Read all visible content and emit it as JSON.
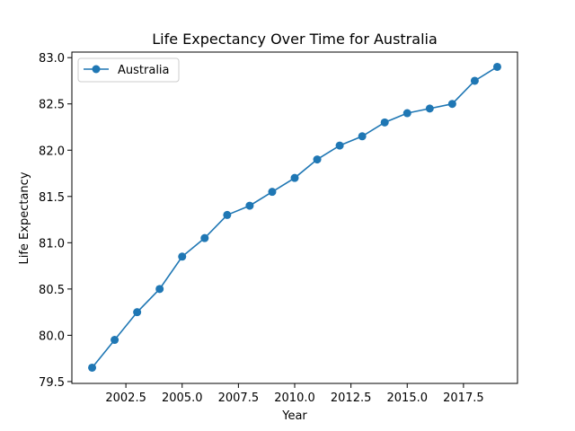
{
  "chart_data": {
    "type": "line",
    "title": "Life Expectancy Over Time for Australia",
    "xlabel": "Year",
    "ylabel": "Life Expectancy",
    "xlim": [
      2000.1,
      2019.9
    ],
    "ylim": [
      79.48,
      83.06
    ],
    "xticks": [
      2002.5,
      2005.0,
      2007.5,
      2010.0,
      2012.5,
      2015.0,
      2017.5
    ],
    "xtick_labels": [
      "2002.5",
      "2005.0",
      "2007.5",
      "2010.0",
      "2012.5",
      "2015.0",
      "2017.5"
    ],
    "yticks": [
      79.5,
      80.0,
      80.5,
      81.0,
      81.5,
      82.0,
      82.5,
      83.0
    ],
    "ytick_labels": [
      "79.5",
      "80.0",
      "80.5",
      "81.0",
      "81.5",
      "82.0",
      "82.5",
      "83.0"
    ],
    "grid": false,
    "legend_position": "top-left",
    "series": [
      {
        "name": "Australia",
        "color": "#1f77b4",
        "marker": "circle",
        "x": [
          2001,
          2002,
          2003,
          2004,
          2005,
          2006,
          2007,
          2008,
          2009,
          2010,
          2011,
          2012,
          2013,
          2014,
          2015,
          2016,
          2017,
          2018,
          2019
        ],
        "y": [
          79.65,
          79.95,
          80.25,
          80.5,
          80.85,
          81.05,
          81.3,
          81.4,
          81.55,
          81.7,
          81.9,
          82.05,
          82.15,
          82.3,
          82.4,
          82.45,
          82.5,
          82.75,
          82.9
        ]
      }
    ]
  }
}
